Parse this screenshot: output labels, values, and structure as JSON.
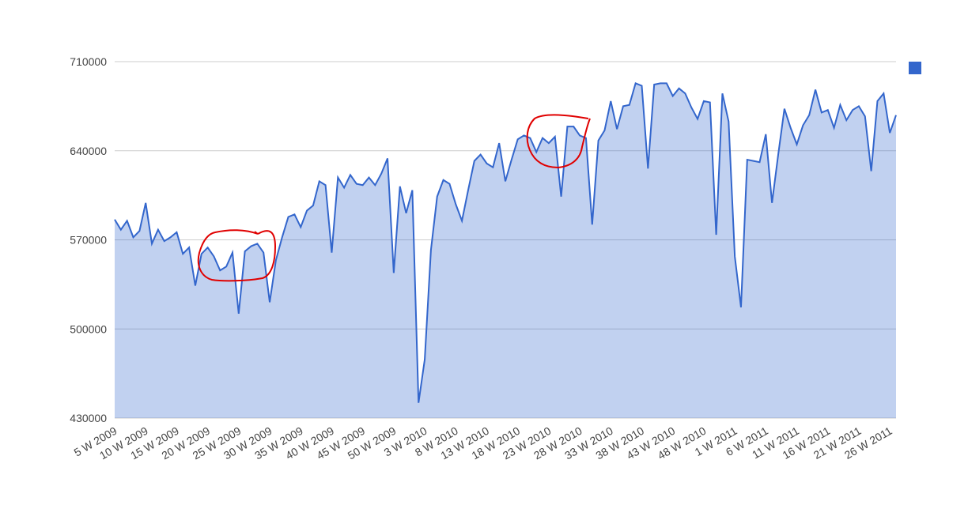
{
  "chart_data": {
    "type": "area",
    "categories": [
      "5 W 2009",
      null,
      null,
      null,
      null,
      "10 W 2009",
      null,
      null,
      null,
      null,
      "15 W 2009",
      null,
      null,
      null,
      null,
      "20 W 2009",
      null,
      null,
      null,
      null,
      "25 W 2009",
      null,
      null,
      null,
      null,
      "30 W 2009",
      null,
      null,
      null,
      null,
      "35 W 2009",
      null,
      null,
      null,
      null,
      "40 W 2009",
      null,
      null,
      null,
      null,
      "45 W 2009",
      null,
      null,
      null,
      null,
      "50 W 2009",
      null,
      null,
      null,
      null,
      "3 W 2010",
      null,
      null,
      null,
      null,
      "8 W 2010",
      null,
      null,
      null,
      null,
      "13 W 2010",
      null,
      null,
      null,
      null,
      "18 W 2010",
      null,
      null,
      null,
      null,
      "23 W 2010",
      null,
      null,
      null,
      null,
      "28 W 2010",
      null,
      null,
      null,
      null,
      "33 W 2010",
      null,
      null,
      null,
      null,
      "38 W 2010",
      null,
      null,
      null,
      null,
      "43 W 2010",
      null,
      null,
      null,
      null,
      "48 W 2010",
      null,
      null,
      null,
      null,
      "1 W 2011",
      null,
      null,
      null,
      null,
      "6 W 2011",
      null,
      null,
      null,
      null,
      "11 W 2011",
      null,
      null,
      null,
      null,
      "16 W 2011",
      null,
      null,
      null,
      null,
      "21 W 2011",
      null,
      null,
      null,
      null,
      "26 W 2011",
      null
    ],
    "series": [
      {
        "color": "#3366cc",
        "values": [
          586000,
          578000,
          585000,
          572000,
          577000,
          599000,
          567000,
          578000,
          569000,
          572000,
          576000,
          559000,
          564000,
          534000,
          559000,
          564000,
          557000,
          546000,
          549000,
          560000,
          512000,
          561000,
          565000,
          567000,
          560000,
          521000,
          554000,
          572000,
          588000,
          590000,
          580000,
          593000,
          597000,
          616000,
          613000,
          560000,
          619000,
          611000,
          621000,
          614000,
          613000,
          619000,
          613000,
          622000,
          634000,
          544000,
          612000,
          591000,
          609000,
          442000,
          476000,
          562000,
          604000,
          617000,
          614000,
          598000,
          585000,
          609000,
          632000,
          637000,
          630000,
          627000,
          646000,
          616000,
          633000,
          649000,
          652000,
          650000,
          639000,
          650000,
          646000,
          651000,
          604000,
          659000,
          659000,
          652000,
          650000,
          582000,
          648000,
          656000,
          679000,
          657000,
          675000,
          676000,
          693000,
          691000,
          626000,
          692000,
          693000,
          693000,
          683000,
          689000,
          685000,
          674000,
          665000,
          679000,
          678000,
          574000,
          685000,
          663000,
          557000,
          517000,
          633000,
          632000,
          631000,
          653000,
          599000,
          637000,
          673000,
          658000,
          645000,
          660000,
          668000,
          688000,
          670000,
          672000,
          658000,
          676000,
          664000,
          672000,
          675000,
          667000,
          624000,
          679000,
          685000,
          654000,
          668000
        ]
      }
    ],
    "ylim": [
      430000,
      710000
    ],
    "yticks": [
      430000,
      500000,
      570000,
      640000,
      710000
    ],
    "grid": true,
    "legend": "top-right"
  }
}
